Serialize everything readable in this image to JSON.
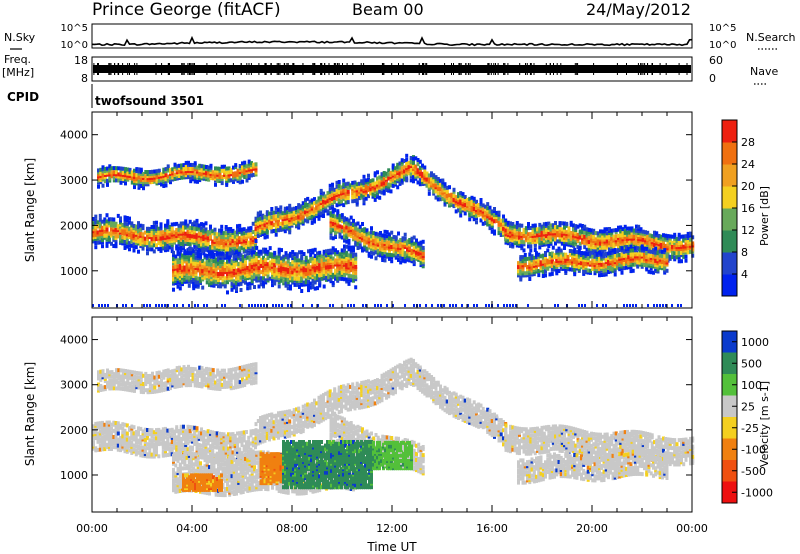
{
  "header": {
    "station": "Prince George (fitACF)",
    "beam": "Beam 00",
    "date": "24/May/2012"
  },
  "status": {
    "nsky_label": "N.Sky",
    "nsky_ticks": [
      "10^5",
      "10^0"
    ],
    "nsearch_label": "N.Search",
    "nsearch_ticks": [
      "10^5",
      "10^0"
    ],
    "freq_label": "Freq.",
    "freq_unit": "[MHz]",
    "freq_ticks": [
      "18",
      "8"
    ],
    "nave_label": "Nave",
    "nave_ticks": [
      "60",
      "0"
    ],
    "cpid_label": "CPID",
    "cpid_value": "twofsound 3501"
  },
  "colors": {
    "power": [
      "#0022ee",
      "#2244cc",
      "#2f8b57",
      "#68a95a",
      "#f4d020",
      "#f0a020",
      "#f07010",
      "#ee2010"
    ],
    "velocity": [
      "#0a3acc",
      "#2f8b57",
      "#53c03a",
      "#c8c8c8",
      "#f4d020",
      "#f08010",
      "#f05010",
      "#ee1010"
    ]
  },
  "chart_data": [
    {
      "type": "heatmap",
      "name": "power",
      "xlabel": "",
      "ylabel": "Slant Range [km]",
      "x_range_hours": [
        0,
        24
      ],
      "ylim": [
        180,
        4500
      ],
      "y_ticks": [
        "1000",
        "2000",
        "3000",
        "4000"
      ],
      "colorbar_label": "Power [dB]",
      "colorbar_ticks": [
        "4",
        "8",
        "12",
        "16",
        "20",
        "24",
        "28"
      ],
      "bands": [
        {
          "start": 0,
          "end": 6.5,
          "center_start": 1850,
          "center_end": 1650,
          "width": 260
        },
        {
          "start": 6.5,
          "end": 12.8,
          "center_start": 1900,
          "center_end": 3250,
          "width": 230
        },
        {
          "start": 12.8,
          "end": 16.5,
          "center_start": 3200,
          "center_end": 1900,
          "width": 220
        },
        {
          "start": 16.5,
          "end": 24,
          "center_start": 1850,
          "center_end": 1550,
          "width": 240
        },
        {
          "start": 0.2,
          "end": 6.5,
          "center_start": 3050,
          "center_end": 3200,
          "width": 170
        },
        {
          "start": 3.2,
          "end": 10.5,
          "center_start": 1000,
          "center_end": 1080,
          "width": 340
        },
        {
          "start": 9.5,
          "end": 13.2,
          "center_start": 2000,
          "center_end": 1300,
          "width": 250
        },
        {
          "start": 17.0,
          "end": 23.0,
          "center_start": 1150,
          "center_end": 1250,
          "width": 220
        }
      ]
    },
    {
      "type": "heatmap",
      "name": "velocity",
      "xlabel": "Time UT",
      "ylabel": "Slant Range [km]",
      "x_range_hours": [
        0,
        24
      ],
      "x_ticks": [
        "00:00",
        "04:00",
        "08:00",
        "12:00",
        "16:00",
        "20:00",
        "00:00"
      ],
      "ylim": [
        180,
        4500
      ],
      "y_ticks": [
        "1000",
        "2000",
        "3000",
        "4000"
      ],
      "colorbar_label": "Velocity [m s-1]",
      "colorbar_ticks": [
        "1000",
        "500",
        "100",
        "25",
        "-25",
        "-100",
        "-500",
        "-1000"
      ],
      "patches": [
        {
          "start": 3.6,
          "end": 5.2,
          "center": 850,
          "width": 180,
          "level": 5
        },
        {
          "start": 6.7,
          "end": 7.6,
          "center": 1150,
          "width": 330,
          "level": 5
        },
        {
          "start": 7.6,
          "end": 11.2,
          "center": 1250,
          "width": 520,
          "level": 1
        },
        {
          "start": 11.2,
          "end": 12.8,
          "center": 1450,
          "width": 300,
          "level": 2
        }
      ]
    }
  ]
}
